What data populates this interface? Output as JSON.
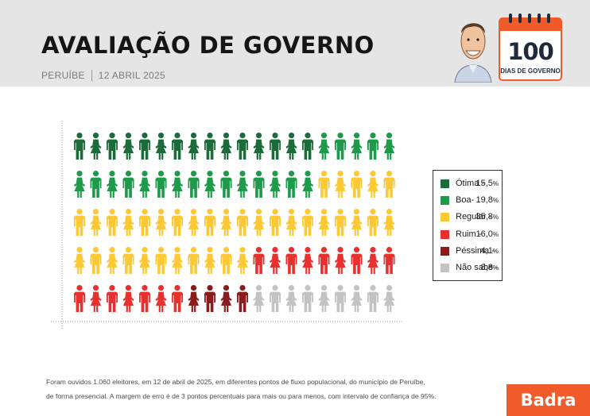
{
  "header": {
    "title": "AVALIAÇÃO DE GOVERNO",
    "city": "PERUÍBE",
    "date": "12 ABRIL 2025"
  },
  "badge": {
    "number": "100",
    "label": "DIAS DE GOVERNO",
    "icon": "calendar-icon"
  },
  "avatar": {
    "icon": "caricature-portrait"
  },
  "footnote": {
    "line1": "Foram ouvidos 1.060 eleitores, em 12 de abril de 2025, em diferentes pontos de fluxo populacional, do município de Peruíbe,",
    "line2": "de forma presencial. A margem de erro é de 3 pontos percentuais para mais ou para menos, com intervalo de confiança de 95%."
  },
  "brand": {
    "name": "Badra"
  },
  "chart_data": {
    "type": "pictograph",
    "total_icons": 100,
    "grid": {
      "columns": 20,
      "rows": 5
    },
    "legend_placement": "right",
    "series": [
      {
        "name": "Ótima -",
        "value": 15.5,
        "display": "15,5",
        "icons": 15,
        "color": "#1c6b3a"
      },
      {
        "name": "Boa-",
        "value": 19.8,
        "display": "19,8",
        "icons": 20,
        "color": "#1e9a4a"
      },
      {
        "name": "Regular -",
        "value": 35.8,
        "display": "35,8",
        "icons": 36,
        "color": "#fcc934"
      },
      {
        "name": "Ruim -",
        "value": 16.0,
        "display": "16,0",
        "icons": 16,
        "color": "#e8302e"
      },
      {
        "name": "Péssima -",
        "value": 4.1,
        "display": "4,1",
        "icons": 4,
        "color": "#8a1c1c"
      },
      {
        "name": "Não sabe -",
        "value": 8.8,
        "display": "8,8",
        "icons": 9,
        "color": "#c3c3c3"
      }
    ],
    "unit": "%"
  }
}
